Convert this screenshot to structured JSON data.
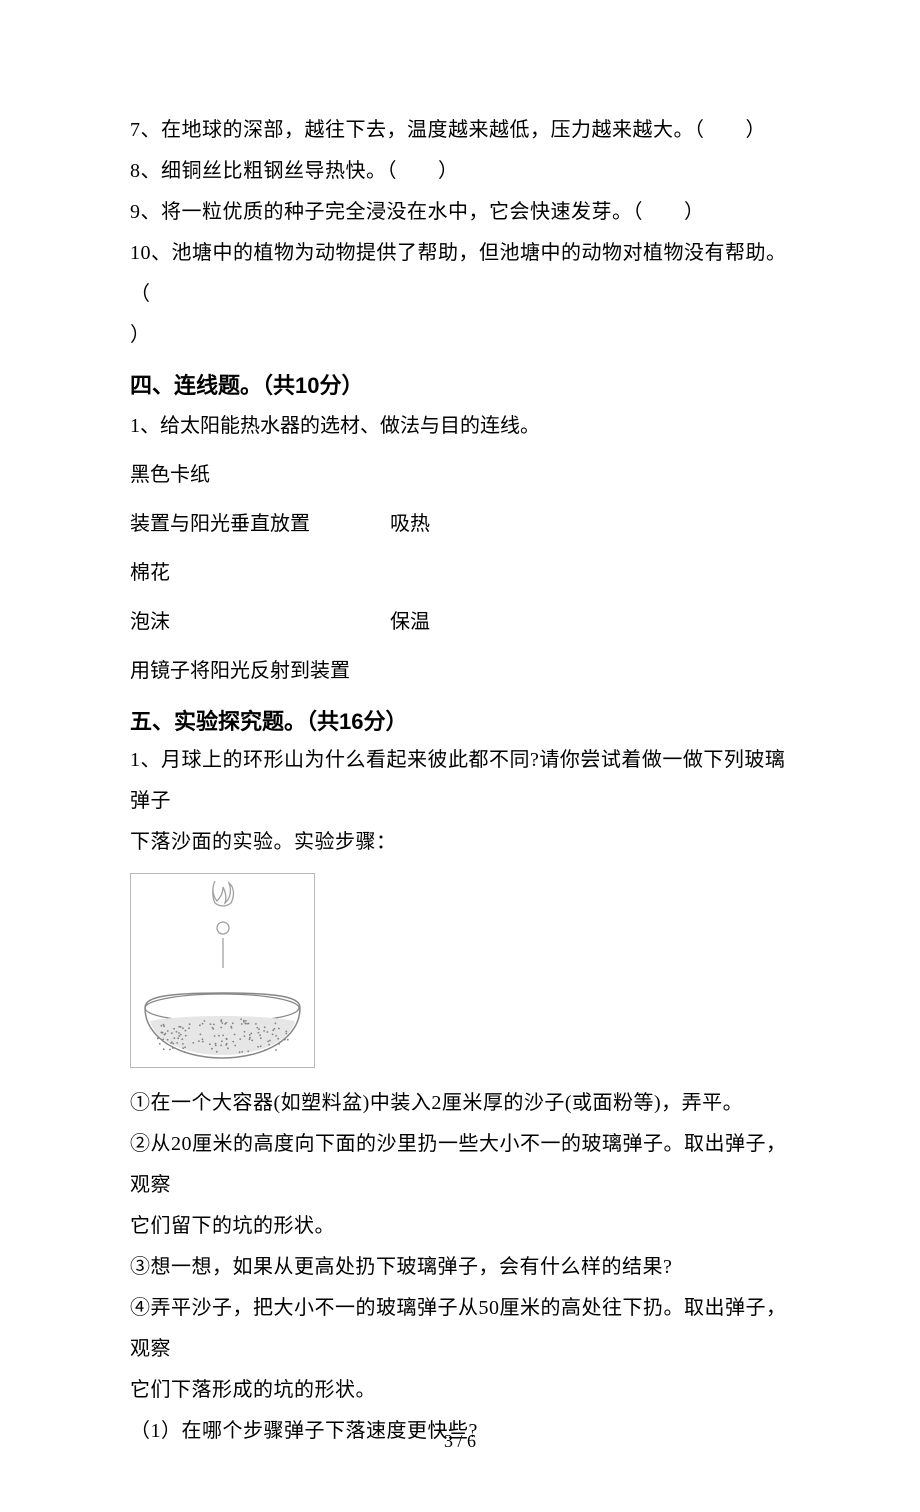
{
  "tf": {
    "q7": "7、在地球的深部，越往下去，温度越来越低，压力越来越大。（　　）",
    "q8": "8、细铜丝比粗钢丝导热快。（　　）",
    "q9": "9、将一粒优质的种子完全浸没在水中，它会快速发芽。（　　）",
    "q10a": "10、池塘中的植物为动物提供了帮助，但池塘中的动物对植物没有帮助。（",
    "q10b": "）"
  },
  "section4": {
    "heading": "四、连线题。（共10分）",
    "q1": "1、给太阳能热水器的选材、做法与目的连线。",
    "rows": [
      {
        "left": "黑色卡纸",
        "right": ""
      },
      {
        "left": "装置与阳光垂直放置",
        "right": "吸热"
      },
      {
        "left": "棉花",
        "right": ""
      },
      {
        "left": "泡沫",
        "right": "保温"
      },
      {
        "left": "用镜子将阳光反射到装置",
        "right": ""
      }
    ]
  },
  "section5": {
    "heading": "五、实验探究题。（共16分）",
    "intro1": "1、月球上的环形山为什么看起来彼此都不同?请你尝试着做一做下列玻璃弹子",
    "intro2": "下落沙面的实验。实验步骤：",
    "step1": "①在一个大容器(如塑料盆)中装入2厘米厚的沙子(或面粉等)，弄平。",
    "step2a": "②从20厘米的高度向下面的沙里扔一些大小不一的玻璃弹子。取出弹子，观察",
    "step2b": "它们留下的坑的形状。",
    "step3": "③想一想，如果从更高处扔下玻璃弹子，会有什么样的结果?",
    "step4a": "④弄平沙子，把大小不一的玻璃弹子从50厘米的高处往下扔。取出弹子，观察",
    "step4b": "它们下落形成的坑的形状。",
    "sub1": "（1）在哪个步骤弹子下落速度更快些?"
  },
  "figure": {
    "border_color": "#b8b8b8",
    "border_width": 1,
    "width": 185,
    "height": 195,
    "background": "#ffffff",
    "hand_color": "#a0a0a0",
    "ball_color": "#a0a0a0",
    "bowl_stroke": "#888888",
    "sand_fill": "#e6e6e6",
    "sand_dot": "#808080"
  },
  "footer": "3 / 6"
}
